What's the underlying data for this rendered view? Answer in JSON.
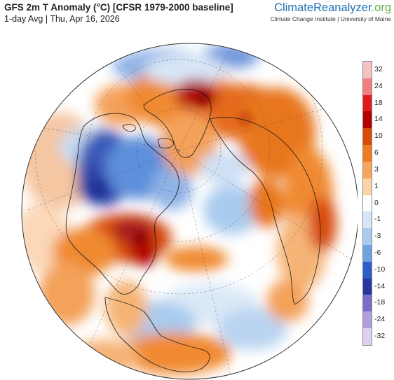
{
  "header": {
    "title": "GFS 2m T Anomaly (°C) [CFSR 1979-2000 baseline]",
    "subtitle": "1-day Avg | Thu, Apr 16, 2026"
  },
  "brand": {
    "name_part1": "Climate",
    "name_part2": "Reanalyzer",
    "name_part3": ".org",
    "affiliation": "Climate Change Institute | University of Maine",
    "colors": {
      "primary": "#1f6fb0",
      "accent": "#6ab04a"
    }
  },
  "legend": {
    "labels": [
      "32",
      "24",
      "18",
      "14",
      "10",
      "6",
      "3",
      "1",
      "0",
      "-1",
      "-3",
      "-6",
      "-10",
      "-14",
      "-18",
      "-24",
      "-32"
    ],
    "colors": [
      "#f4c2c2",
      "#f08080",
      "#e21a1a",
      "#b30000",
      "#d84b0a",
      "#f07a20",
      "#f7a55a",
      "#fbd3a6",
      "#ffffff",
      "#d6e6f7",
      "#a8cbee",
      "#6fa3e0",
      "#2c5fc9",
      "#2a37a0",
      "#7d6cc7",
      "#b19fdc",
      "#ddd0ef"
    ]
  },
  "map": {
    "projection": "orthographic, north-polar perspective",
    "colors": {
      "strong_warm": "#c41010",
      "warm": "#e46a1c",
      "mild_warm": "#f4a15a",
      "neutral": "#ffffff",
      "mild_cool": "#b9d4f1",
      "cool": "#5d8fdc",
      "strong_cool": "#2a3fa5"
    }
  }
}
